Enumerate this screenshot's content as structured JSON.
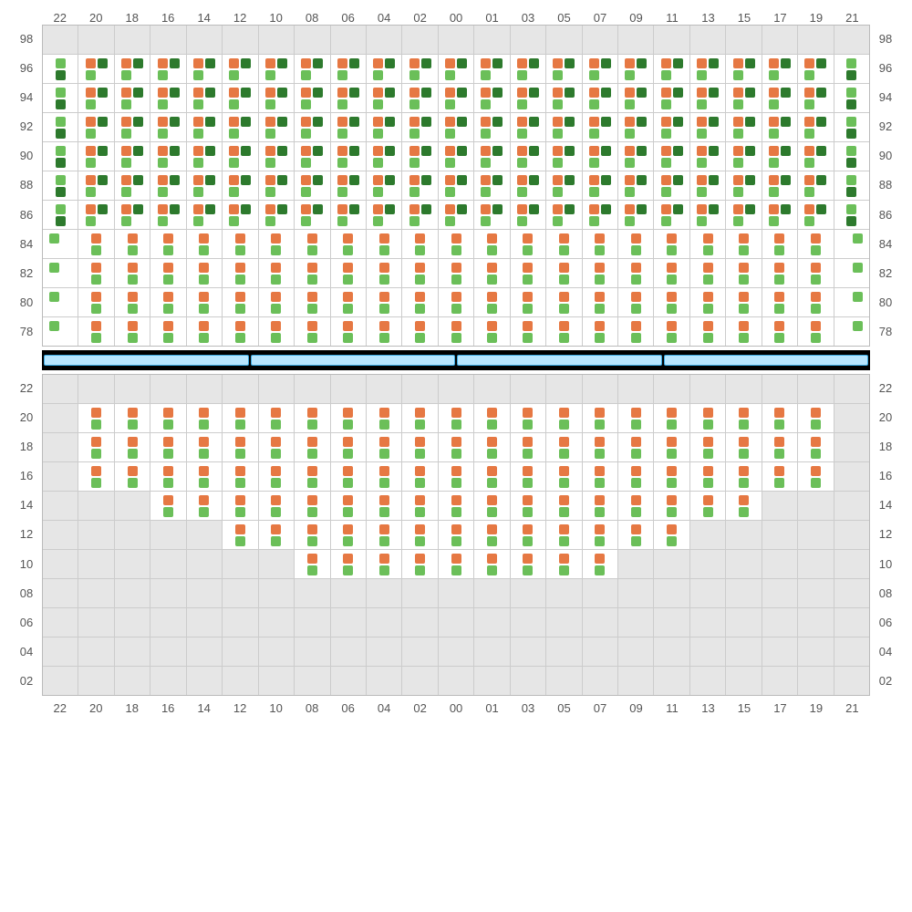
{
  "colors": {
    "orange": "#e67843",
    "green_light": "#6bbf59",
    "green_dark": "#2d7a2d",
    "cell_inactive": "#e6e6e6",
    "cell_active": "#ffffff",
    "grid_border": "#cccccc",
    "label_text": "#555555",
    "stage_bg": "#000000",
    "stage_seg_fill": "#b8e6ff",
    "stage_seg_border": "#3aa8e0"
  },
  "columns": [
    "22",
    "20",
    "18",
    "16",
    "14",
    "12",
    "10",
    "08",
    "06",
    "04",
    "02",
    "00",
    "01",
    "03",
    "05",
    "07",
    "09",
    "11",
    "13",
    "15",
    "17",
    "19",
    "21"
  ],
  "top_rows": [
    "98",
    "96",
    "94",
    "92",
    "90",
    "88",
    "86",
    "84",
    "82",
    "80",
    "78"
  ],
  "bottom_rows": [
    "22",
    "20",
    "18",
    "16",
    "14",
    "12",
    "10",
    "08",
    "06",
    "04",
    "02"
  ],
  "stage_segments": 4,
  "top_grid": [
    {
      "row": "98",
      "cells": [
        0,
        0,
        0,
        0,
        0,
        0,
        0,
        0,
        0,
        0,
        0,
        0,
        0,
        0,
        0,
        0,
        0,
        0,
        0,
        0,
        0,
        0,
        0
      ]
    },
    {
      "row": "96",
      "cells": [
        "B",
        "A",
        "A",
        "A",
        "A",
        "A",
        "A",
        "A",
        "A",
        "A",
        "A",
        "A",
        "A",
        "A",
        "A",
        "A",
        "A",
        "A",
        "A",
        "A",
        "A",
        "A",
        "B"
      ]
    },
    {
      "row": "94",
      "cells": [
        "B",
        "A",
        "A",
        "A",
        "A",
        "A",
        "A",
        "A",
        "A",
        "A",
        "A",
        "A",
        "A",
        "A",
        "A",
        "A",
        "A",
        "A",
        "A",
        "A",
        "A",
        "A",
        "B"
      ]
    },
    {
      "row": "92",
      "cells": [
        "B",
        "A",
        "A",
        "A",
        "A",
        "A",
        "A",
        "A",
        "A",
        "A",
        "A",
        "A",
        "A",
        "A",
        "A",
        "A",
        "A",
        "A",
        "A",
        "A",
        "A",
        "A",
        "B"
      ]
    },
    {
      "row": "90",
      "cells": [
        "B",
        "A",
        "A",
        "A",
        "A",
        "A",
        "A",
        "A",
        "A",
        "A",
        "A",
        "A",
        "A",
        "A",
        "A",
        "A",
        "A",
        "A",
        "A",
        "A",
        "A",
        "A",
        "B"
      ]
    },
    {
      "row": "88",
      "cells": [
        "B",
        "A",
        "A",
        "A",
        "A",
        "A",
        "A",
        "A",
        "A",
        "A",
        "A",
        "A",
        "A",
        "A",
        "A",
        "A",
        "A",
        "A",
        "A",
        "A",
        "A",
        "A",
        "B"
      ]
    },
    {
      "row": "86",
      "cells": [
        "B",
        "A",
        "A",
        "A",
        "A",
        "A",
        "A",
        "A",
        "A",
        "A",
        "A",
        "A",
        "A",
        "A",
        "A",
        "A",
        "A",
        "A",
        "A",
        "A",
        "A",
        "A",
        "B"
      ]
    },
    {
      "row": "84",
      "cells": [
        "D",
        "C",
        "C",
        "C",
        "C",
        "C",
        "C",
        "C",
        "C",
        "C",
        "C",
        "C",
        "C",
        "C",
        "C",
        "C",
        "C",
        "C",
        "C",
        "C",
        "C",
        "C",
        "E"
      ]
    },
    {
      "row": "82",
      "cells": [
        "D",
        "C",
        "C",
        "C",
        "C",
        "C",
        "C",
        "C",
        "C",
        "C",
        "C",
        "C",
        "C",
        "C",
        "C",
        "C",
        "C",
        "C",
        "C",
        "C",
        "C",
        "C",
        "E"
      ]
    },
    {
      "row": "80",
      "cells": [
        "D",
        "C",
        "C",
        "C",
        "C",
        "C",
        "C",
        "C",
        "C",
        "C",
        "C",
        "C",
        "C",
        "C",
        "C",
        "C",
        "C",
        "C",
        "C",
        "C",
        "C",
        "C",
        "E"
      ]
    },
    {
      "row": "78",
      "cells": [
        "D",
        "C",
        "C",
        "C",
        "C",
        "C",
        "C",
        "C",
        "C",
        "C",
        "C",
        "C",
        "C",
        "C",
        "C",
        "C",
        "C",
        "C",
        "C",
        "C",
        "C",
        "C",
        "E"
      ]
    }
  ],
  "bottom_grid": [
    {
      "row": "22",
      "cells": [
        0,
        0,
        0,
        0,
        0,
        0,
        0,
        0,
        0,
        0,
        0,
        0,
        0,
        0,
        0,
        0,
        0,
        0,
        0,
        0,
        0,
        0,
        0
      ]
    },
    {
      "row": "20",
      "cells": [
        0,
        "C",
        "C",
        "C",
        "C",
        "C",
        "C",
        "C",
        "C",
        "C",
        "C",
        "C",
        "C",
        "C",
        "C",
        "C",
        "C",
        "C",
        "C",
        "C",
        "C",
        "C",
        0
      ]
    },
    {
      "row": "18",
      "cells": [
        0,
        "C",
        "C",
        "C",
        "C",
        "C",
        "C",
        "C",
        "C",
        "C",
        "C",
        "C",
        "C",
        "C",
        "C",
        "C",
        "C",
        "C",
        "C",
        "C",
        "C",
        "C",
        0
      ]
    },
    {
      "row": "16",
      "cells": [
        0,
        "C",
        "C",
        "C",
        "C",
        "C",
        "C",
        "C",
        "C",
        "C",
        "C",
        "C",
        "C",
        "C",
        "C",
        "C",
        "C",
        "C",
        "C",
        "C",
        "C",
        "C",
        0
      ]
    },
    {
      "row": "14",
      "cells": [
        0,
        0,
        0,
        "C",
        "C",
        "C",
        "C",
        "C",
        "C",
        "C",
        "C",
        "C",
        "C",
        "C",
        "C",
        "C",
        "C",
        "C",
        "C",
        "C",
        0,
        0,
        0
      ]
    },
    {
      "row": "12",
      "cells": [
        0,
        0,
        0,
        0,
        0,
        "C",
        "C",
        "C",
        "C",
        "C",
        "C",
        "C",
        "C",
        "C",
        "C",
        "C",
        "C",
        "C",
        0,
        0,
        0,
        0,
        0
      ]
    },
    {
      "row": "10",
      "cells": [
        0,
        0,
        0,
        0,
        0,
        0,
        0,
        "C",
        "C",
        "C",
        "C",
        "C",
        "C",
        "C",
        "C",
        "C",
        0,
        0,
        0,
        0,
        0,
        0,
        0
      ]
    },
    {
      "row": "08",
      "cells": [
        0,
        0,
        0,
        0,
        0,
        0,
        0,
        0,
        0,
        0,
        0,
        0,
        0,
        0,
        0,
        0,
        0,
        0,
        0,
        0,
        0,
        0,
        0
      ]
    },
    {
      "row": "06",
      "cells": [
        0,
        0,
        0,
        0,
        0,
        0,
        0,
        0,
        0,
        0,
        0,
        0,
        0,
        0,
        0,
        0,
        0,
        0,
        0,
        0,
        0,
        0,
        0
      ]
    },
    {
      "row": "04",
      "cells": [
        0,
        0,
        0,
        0,
        0,
        0,
        0,
        0,
        0,
        0,
        0,
        0,
        0,
        0,
        0,
        0,
        0,
        0,
        0,
        0,
        0,
        0,
        0
      ]
    },
    {
      "row": "02",
      "cells": [
        0,
        0,
        0,
        0,
        0,
        0,
        0,
        0,
        0,
        0,
        0,
        0,
        0,
        0,
        0,
        0,
        0,
        0,
        0,
        0,
        0,
        0,
        0
      ]
    }
  ],
  "patterns": {
    "A": [
      [
        "orange",
        "green_dark"
      ],
      [
        "green_light",
        null
      ]
    ],
    "B": [
      [
        "green_light"
      ],
      [
        "green_dark"
      ]
    ],
    "C": [
      [
        "orange"
      ],
      [
        "green_light"
      ]
    ],
    "D": [
      [
        "green_light",
        null
      ],
      [
        null,
        null
      ]
    ],
    "E": [
      [
        null,
        "green_light"
      ],
      [
        null,
        null
      ]
    ]
  }
}
